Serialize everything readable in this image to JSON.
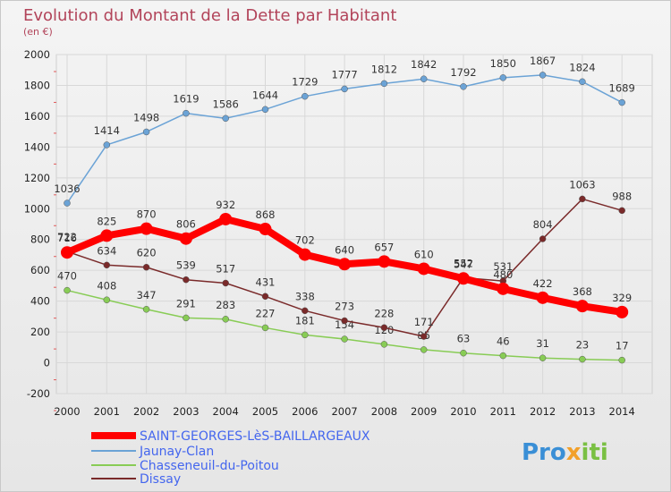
{
  "chart_data": {
    "type": "line",
    "title": "Evolution du Montant de la Dette par Habitant",
    "subtitle": "(en €)",
    "x": [
      "2000",
      "2001",
      "2002",
      "2003",
      "2004",
      "2005",
      "2006",
      "2007",
      "2008",
      "2009",
      "2010",
      "2011",
      "2012",
      "2013",
      "2014"
    ],
    "y_ticks": [
      "-200",
      "0",
      "200",
      "400",
      "600",
      "800",
      "1000",
      "1200",
      "1400",
      "1600",
      "1800",
      "2000"
    ],
    "ylim": [
      -200,
      2000
    ],
    "grid": true,
    "legend_position": "bottom-left",
    "series": [
      {
        "name": "SAINT-GEORGES-LèS-BAILLARGEAUX",
        "color": "#ff0000",
        "values": [
          716,
          825,
          870,
          806,
          932,
          868,
          702,
          640,
          657,
          610,
          547,
          480,
          422,
          368,
          329
        ],
        "labels": [
          "716",
          "825",
          "870",
          "806",
          "932",
          "868",
          "702",
          "640",
          "657",
          "610",
          "547",
          "480",
          "422",
          "368",
          "329"
        ]
      },
      {
        "name": "Jaunay-Clan",
        "color": "#6ba3d6",
        "values": [
          1036,
          1414,
          1498,
          1619,
          1586,
          1644,
          1729,
          1777,
          1812,
          1842,
          1792,
          1850,
          1867,
          1824,
          1689
        ],
        "labels": [
          "1036",
          "1414",
          "1498",
          "1619",
          "1586",
          "1644",
          "1729",
          "1777",
          "1812",
          "1842",
          "1792",
          "1850",
          "1867",
          "1824",
          "1689"
        ]
      },
      {
        "name": "Chasseneuil-du-Poitou",
        "color": "#88cc55",
        "values": [
          470,
          408,
          347,
          291,
          283,
          227,
          181,
          154,
          120,
          85,
          63,
          46,
          31,
          23,
          17
        ],
        "labels": [
          "470",
          "408",
          "347",
          "291",
          "283",
          "227",
          "181",
          "154",
          "120",
          "85",
          "63",
          "46",
          "31",
          "23",
          "17"
        ]
      },
      {
        "name": "Dissay",
        "color": "#7a2a2a",
        "values": [
          722,
          634,
          620,
          539,
          517,
          431,
          338,
          273,
          228,
          171,
          552,
          531,
          804,
          1063,
          988
        ],
        "labels": [
          "722",
          "634",
          "620",
          "539",
          "517",
          "431",
          "338",
          "273",
          "228",
          "171",
          "552",
          "531",
          "804",
          "1063",
          "988"
        ]
      }
    ]
  },
  "logo": {
    "text": "Proxiti"
  }
}
